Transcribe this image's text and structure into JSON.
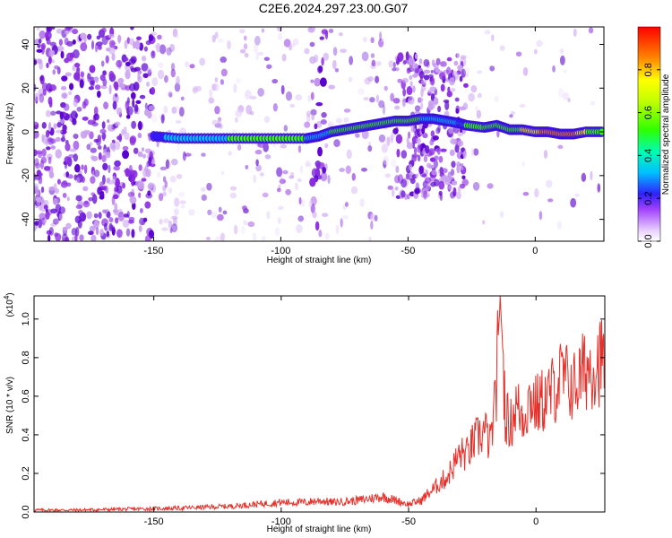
{
  "title": "C2E6.2024.297.23.00.G07",
  "colors": {
    "axis": "#000000",
    "snr_line": "#e8302a",
    "blob_low": "#c9a0f0",
    "blob_mid": "#8a2be2",
    "blob_high": "#5a00d0"
  },
  "chart_data": [
    {
      "type": "heatmap",
      "xlabel": "Height of straight line (km)",
      "ylabel": "Frequency (Hz)",
      "xlim": [
        -197,
        27
      ],
      "ylim": [
        -50,
        48
      ],
      "xticks": [
        -150,
        -100,
        -50,
        0
      ],
      "xtick_labels": [
        "-150",
        "-100",
        "-50",
        "0"
      ],
      "yticks": [
        -40,
        -20,
        0,
        20,
        40
      ],
      "ytick_labels": [
        "-40",
        "-20",
        "0",
        "20",
        "40"
      ],
      "colorbar": {
        "label": "Normalized spectral amplitude",
        "range": [
          0,
          1
        ],
        "ticks": [
          0.0,
          0.2,
          0.4,
          0.6,
          0.8
        ],
        "tick_labels": [
          "0.0",
          "0.2",
          "0.4",
          "0.6",
          "0.8"
        ]
      },
      "ridge": {
        "x": [
          -150,
          -140,
          -130,
          -120,
          -110,
          -100,
          -90,
          -85,
          -80,
          -75,
          -70,
          -65,
          -60,
          -55,
          -50,
          -45,
          -40,
          -35,
          -30,
          -27,
          -20,
          -15,
          -10,
          -5,
          0,
          5,
          10,
          15,
          20,
          27
        ],
        "freq": [
          -2,
          -3,
          -3,
          -3,
          -3,
          -3,
          -3,
          -2,
          0,
          1,
          2,
          3,
          4,
          5,
          5,
          6,
          6,
          5,
          4,
          3,
          2,
          3,
          1,
          1,
          0,
          0,
          -1,
          -1,
          0,
          0
        ],
        "amp": [
          0.3,
          0.4,
          0.4,
          0.5,
          0.5,
          0.5,
          0.5,
          0.4,
          0.5,
          0.5,
          0.5,
          0.55,
          0.55,
          0.6,
          0.6,
          0.5,
          0.45,
          0.4,
          0.4,
          0.5,
          0.5,
          0.5,
          0.6,
          0.7,
          0.8,
          0.9,
          0.95,
          0.9,
          0.7,
          0.6
        ]
      }
    },
    {
      "type": "line",
      "xlabel": "Height of straight line (km)",
      "ylabel": "SNR (10 * v/v)",
      "multiplier_label": "(x10",
      "multiplier_exp": "4",
      "multiplier_close": ")",
      "xlim": [
        -197,
        27
      ],
      "ylim": [
        0,
        1.12
      ],
      "xticks": [
        -150,
        -100,
        -50,
        0
      ],
      "xtick_labels": [
        "-150",
        "-100",
        "-50",
        "0"
      ],
      "yticks": [
        0.0,
        0.2,
        0.4,
        0.6,
        0.8,
        1.0
      ],
      "ytick_labels": [
        "0.0",
        "0.2",
        "0.4",
        "0.6",
        "0.8",
        "1.0"
      ],
      "series": [
        {
          "x": [
            -197,
            -180,
            -160,
            -140,
            -120,
            -110,
            -100,
            -90,
            -85,
            -80,
            -70,
            -60,
            -55,
            -50,
            -45,
            -42,
            -40,
            -38,
            -35,
            -32,
            -30,
            -27,
            -25,
            -22,
            -20,
            -18,
            -16,
            -14,
            -12,
            -10,
            -8,
            -5,
            -2,
            0,
            5,
            10,
            15,
            20,
            25,
            27
          ],
          "y": [
            0.01,
            0.01,
            0.015,
            0.02,
            0.03,
            0.04,
            0.05,
            0.05,
            0.06,
            0.05,
            0.06,
            0.08,
            0.06,
            0.04,
            0.06,
            0.1,
            0.12,
            0.15,
            0.18,
            0.25,
            0.3,
            0.3,
            0.35,
            0.4,
            0.42,
            0.35,
            0.55,
            1.1,
            0.5,
            0.45,
            0.55,
            0.5,
            0.6,
            0.55,
            0.6,
            0.7,
            0.65,
            0.75,
            0.78,
            0.8
          ]
        }
      ]
    }
  ]
}
